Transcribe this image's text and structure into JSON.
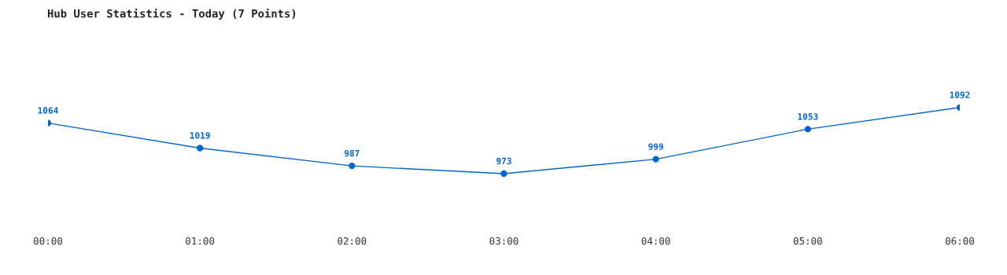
{
  "chart_data": {
    "type": "line",
    "title": "Hub User Statistics - Today (7 Points)",
    "categories": [
      "00:00",
      "01:00",
      "02:00",
      "03:00",
      "04:00",
      "05:00",
      "06:00"
    ],
    "series": [
      {
        "color": "#0066cc",
        "values": [
          1064,
          1019,
          987,
          973,
          999,
          1053,
          1092
        ]
      }
    ],
    "tick_labels": "x",
    "data_labels": true,
    "marker": "circle",
    "line_style": "solid",
    "grid": false
  }
}
